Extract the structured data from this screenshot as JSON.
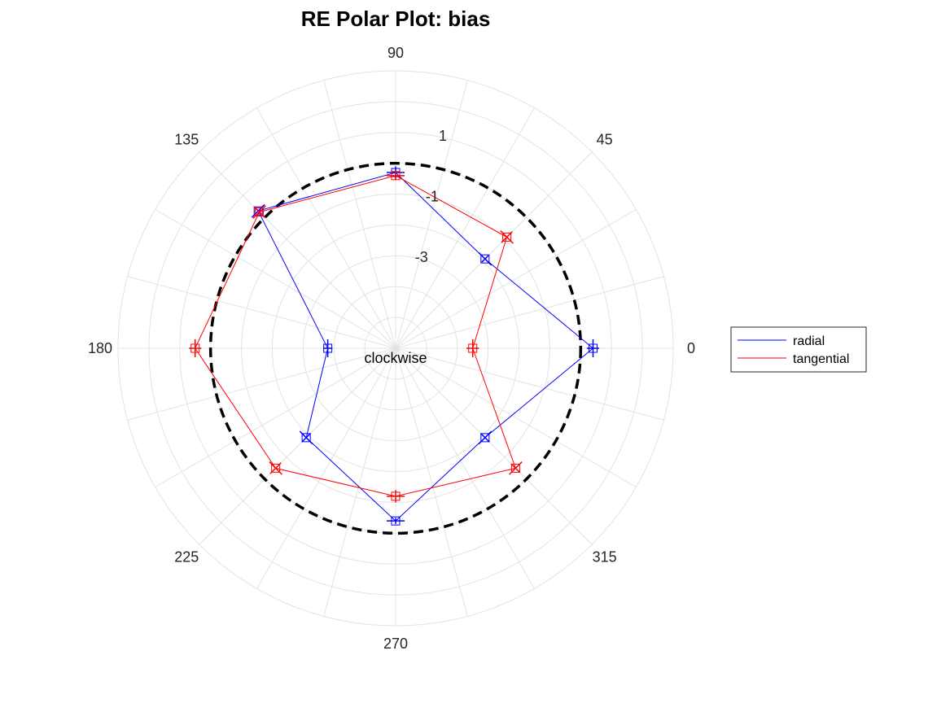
{
  "chart_data": {
    "type": "polar-line",
    "title": "RE Polar Plot: bias",
    "center_label": "clockwise",
    "theta_ticks": [
      "0",
      "45",
      "90",
      "135",
      "180",
      "225",
      "270",
      "315"
    ],
    "theta_tick_values": [
      0,
      45,
      90,
      135,
      180,
      225,
      270,
      315
    ],
    "r_ticks": [
      "1",
      "-1",
      "-3"
    ],
    "r_tick_values": [
      1,
      -1,
      -3
    ],
    "rlim": [
      -6,
      3
    ],
    "grid": true,
    "reference_circle": {
      "r": 0,
      "style": "dashed",
      "color": "#000000"
    },
    "theta": [
      0,
      45,
      90,
      135,
      180,
      225,
      270,
      315
    ],
    "series": [
      {
        "name": "radial",
        "color": "#0000ff",
        "r": [
          0.4,
          -1.9,
          -0.3,
          0.3,
          -3.8,
          -1.9,
          -0.4,
          -1.9
        ],
        "err": [
          0.2,
          0.15,
          0.2,
          0.1,
          0.15,
          0.2,
          0.1,
          0.2
        ]
      },
      {
        "name": "tangential",
        "color": "#ff0000",
        "r": [
          -3.5,
          -0.9,
          -0.4,
          0.25,
          0.5,
          -0.5,
          -1.2,
          -0.5
        ],
        "err": [
          0.2,
          0.25,
          0.15,
          0.25,
          0.2,
          0.25,
          0.2,
          0.2
        ]
      }
    ],
    "legend": {
      "position": "right",
      "entries": [
        "radial",
        "tangential"
      ]
    }
  }
}
